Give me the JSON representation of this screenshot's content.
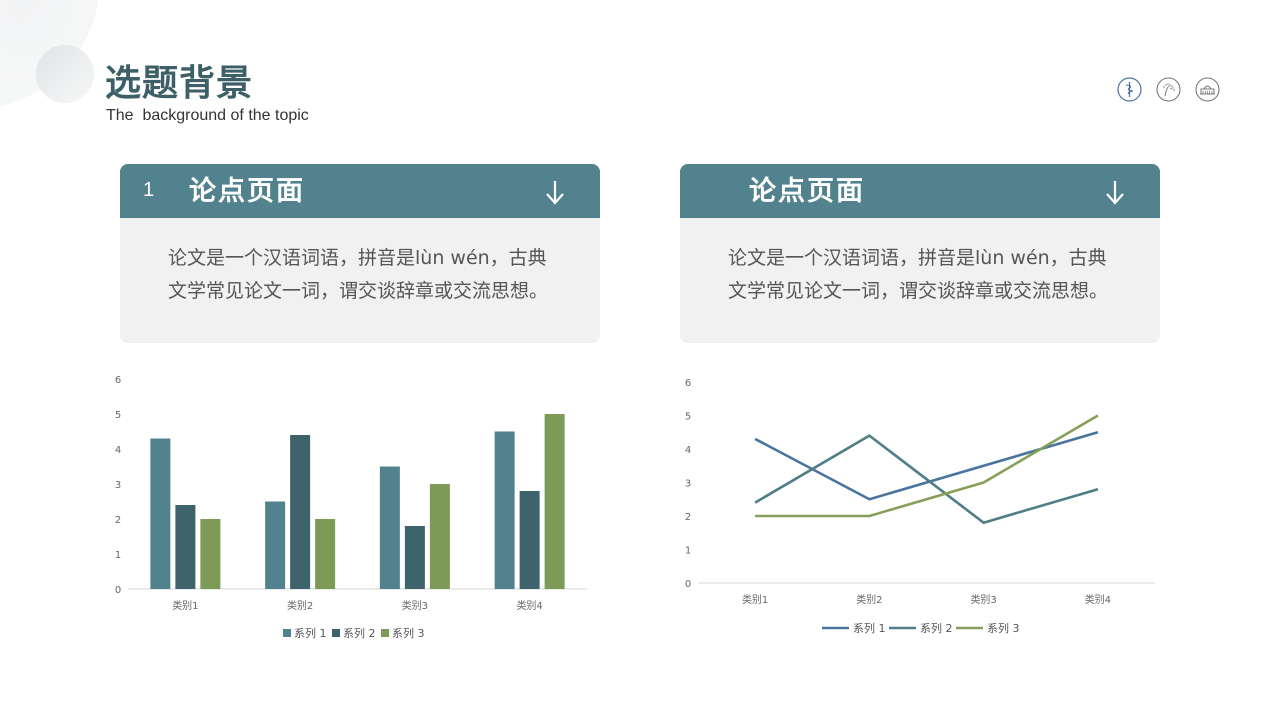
{
  "header": {
    "title": "选题背景",
    "subtitle": "The  background of the topic",
    "icons": [
      "medical-caduceus-icon",
      "dandelion-icon",
      "building-icon"
    ]
  },
  "cards": [
    {
      "number": "1",
      "title": "论点页面",
      "arrow": "arrow-down-icon",
      "body_line1": "论文是一个汉语词语，拼音是lùn wén，古典",
      "body_line2": "文学常见论文一词，谓交谈辞章或交流思想。"
    },
    {
      "number": "",
      "title": "论点页面",
      "arrow": "arrow-down-icon",
      "body_line1": "论文是一个汉语词语，拼音是lùn wén，古典",
      "body_line2": "文学常见论文一词，谓交谈辞章或交流思想。"
    }
  ],
  "colors": {
    "accent": "#52828d",
    "title": "#3d5f68",
    "card_bg": "#f1f1f1",
    "series1_bar": "#52828d",
    "series2_bar": "#3e636b",
    "series3_bar": "#7d9a57",
    "series1_line": "#4a74a0",
    "series2_line": "#4f7e86",
    "series3_line": "#86a05a"
  },
  "chart_data": [
    {
      "type": "bar",
      "title": "",
      "categories": [
        "类别1",
        "类别2",
        "类别3",
        "类别4"
      ],
      "series": [
        {
          "name": "系列 1",
          "values": [
            4.3,
            2.5,
            3.5,
            4.5
          ]
        },
        {
          "name": "系列 2",
          "values": [
            2.4,
            4.4,
            1.8,
            2.8
          ]
        },
        {
          "name": "系列 3",
          "values": [
            2,
            2,
            3,
            5
          ]
        }
      ],
      "yticks": [
        "0",
        "1",
        "2",
        "3",
        "4",
        "5",
        "6"
      ],
      "ylim": [
        0,
        6
      ],
      "xlabel": "",
      "ylabel": "",
      "grid": false,
      "legend_position": "bottom"
    },
    {
      "type": "line",
      "title": "",
      "categories": [
        "类别1",
        "类别2",
        "类别3",
        "类别4"
      ],
      "series": [
        {
          "name": "系列 1",
          "values": [
            4.3,
            2.5,
            3.5,
            4.5
          ]
        },
        {
          "name": "系列 2",
          "values": [
            2.4,
            4.4,
            1.8,
            2.8
          ]
        },
        {
          "name": "系列 3",
          "values": [
            2,
            2,
            3,
            5
          ]
        }
      ],
      "yticks": [
        "0",
        "1",
        "2",
        "3",
        "4",
        "5",
        "6"
      ],
      "ylim": [
        0,
        6
      ],
      "xlabel": "",
      "ylabel": "",
      "grid": false,
      "legend_position": "bottom"
    }
  ]
}
